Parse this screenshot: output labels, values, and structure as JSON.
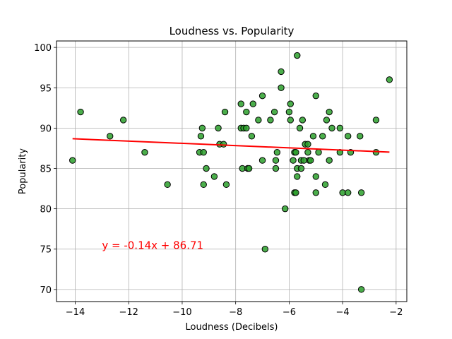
{
  "chart_data": {
    "type": "scatter",
    "title": "Loudness vs. Popularity",
    "xlabel": "Loudness (Decibels)",
    "ylabel": "Popularity",
    "xlim": [
      -14.7,
      -1.6
    ],
    "ylim": [
      68.5,
      100.8
    ],
    "xticks": [
      -14,
      -12,
      -10,
      -8,
      -6,
      -4,
      -2
    ],
    "xtick_labels": [
      "−14",
      "−12",
      "−10",
      "−8",
      "−6",
      "−4",
      "−2"
    ],
    "yticks": [
      70,
      75,
      80,
      85,
      90,
      95,
      100
    ],
    "ytick_labels": [
      "70",
      "75",
      "80",
      "85",
      "90",
      "95",
      "100"
    ],
    "grid": true,
    "colors": {
      "points": "#2ca02c",
      "point_edge": "#000000",
      "regression": "#ff0000",
      "annotation": "#ff0000"
    },
    "points": [
      {
        "x": -14.1,
        "y": 86
      },
      {
        "x": -13.8,
        "y": 92
      },
      {
        "x": -12.7,
        "y": 89
      },
      {
        "x": -12.2,
        "y": 91
      },
      {
        "x": -11.4,
        "y": 87
      },
      {
        "x": -10.55,
        "y": 83
      },
      {
        "x": -9.35,
        "y": 87
      },
      {
        "x": -9.3,
        "y": 89
      },
      {
        "x": -9.25,
        "y": 90
      },
      {
        "x": -9.2,
        "y": 87
      },
      {
        "x": -9.2,
        "y": 83
      },
      {
        "x": -9.1,
        "y": 85
      },
      {
        "x": -8.8,
        "y": 84
      },
      {
        "x": -8.65,
        "y": 90
      },
      {
        "x": -8.6,
        "y": 88
      },
      {
        "x": -8.45,
        "y": 88
      },
      {
        "x": -8.4,
        "y": 92
      },
      {
        "x": -8.35,
        "y": 83
      },
      {
        "x": -7.8,
        "y": 93
      },
      {
        "x": -7.8,
        "y": 90
      },
      {
        "x": -7.75,
        "y": 85
      },
      {
        "x": -7.7,
        "y": 90
      },
      {
        "x": -7.6,
        "y": 92
      },
      {
        "x": -7.6,
        "y": 90
      },
      {
        "x": -7.55,
        "y": 85
      },
      {
        "x": -7.5,
        "y": 85
      },
      {
        "x": -7.4,
        "y": 89
      },
      {
        "x": -7.35,
        "y": 93
      },
      {
        "x": -7.15,
        "y": 91
      },
      {
        "x": -7.0,
        "y": 94
      },
      {
        "x": -7.0,
        "y": 86
      },
      {
        "x": -6.9,
        "y": 75
      },
      {
        "x": -6.7,
        "y": 91
      },
      {
        "x": -6.55,
        "y": 92
      },
      {
        "x": -6.5,
        "y": 86
      },
      {
        "x": -6.5,
        "y": 85
      },
      {
        "x": -6.45,
        "y": 87
      },
      {
        "x": -6.3,
        "y": 97
      },
      {
        "x": -6.3,
        "y": 95
      },
      {
        "x": -6.15,
        "y": 80
      },
      {
        "x": -6.0,
        "y": 92
      },
      {
        "x": -5.95,
        "y": 93
      },
      {
        "x": -5.95,
        "y": 91
      },
      {
        "x": -5.85,
        "y": 86
      },
      {
        "x": -5.8,
        "y": 87
      },
      {
        "x": -5.8,
        "y": 82
      },
      {
        "x": -5.75,
        "y": 82
      },
      {
        "x": -5.75,
        "y": 87
      },
      {
        "x": -5.7,
        "y": 99
      },
      {
        "x": -5.7,
        "y": 85
      },
      {
        "x": -5.7,
        "y": 84
      },
      {
        "x": -5.6,
        "y": 90
      },
      {
        "x": -5.55,
        "y": 86
      },
      {
        "x": -5.55,
        "y": 85
      },
      {
        "x": -5.5,
        "y": 91
      },
      {
        "x": -5.45,
        "y": 86
      },
      {
        "x": -5.4,
        "y": 88
      },
      {
        "x": -5.3,
        "y": 88
      },
      {
        "x": -5.3,
        "y": 87
      },
      {
        "x": -5.25,
        "y": 86
      },
      {
        "x": -5.2,
        "y": 86
      },
      {
        "x": -5.1,
        "y": 89
      },
      {
        "x": -5.0,
        "y": 94
      },
      {
        "x": -5.0,
        "y": 84
      },
      {
        "x": -5.0,
        "y": 82
      },
      {
        "x": -4.9,
        "y": 87
      },
      {
        "x": -4.75,
        "y": 89
      },
      {
        "x": -4.65,
        "y": 83
      },
      {
        "x": -4.6,
        "y": 91
      },
      {
        "x": -4.5,
        "y": 92
      },
      {
        "x": -4.5,
        "y": 86
      },
      {
        "x": -4.4,
        "y": 90
      },
      {
        "x": -4.1,
        "y": 90
      },
      {
        "x": -4.1,
        "y": 87
      },
      {
        "x": -4.0,
        "y": 82
      },
      {
        "x": -3.8,
        "y": 89
      },
      {
        "x": -3.8,
        "y": 82
      },
      {
        "x": -3.7,
        "y": 87
      },
      {
        "x": -3.35,
        "y": 89
      },
      {
        "x": -3.3,
        "y": 82
      },
      {
        "x": -3.3,
        "y": 70
      },
      {
        "x": -2.75,
        "y": 91
      },
      {
        "x": -2.75,
        "y": 87
      },
      {
        "x": -2.25,
        "y": 96
      }
    ],
    "regression": {
      "slope": -0.14,
      "intercept": 86.71,
      "x_range": [
        -14.1,
        -2.25
      ],
      "equation": "y = -0.14x + 86.71",
      "label_position": {
        "x": -13.0,
        "y": 75
      }
    }
  }
}
